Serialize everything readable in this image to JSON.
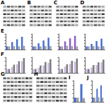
{
  "blots": [
    {
      "label": "A",
      "rows": 6,
      "lanes": 6
    },
    {
      "label": "B",
      "rows": 6,
      "lanes": 6
    },
    {
      "label": "C",
      "rows": 6,
      "lanes": 6
    },
    {
      "label": "D",
      "rows": 6,
      "lanes": 6
    },
    {
      "label": "G",
      "rows": 7,
      "lanes": 8
    },
    {
      "label": "H",
      "rows": 7,
      "lanes": 8
    }
  ],
  "chart_data": [
    {
      "type": "bar",
      "title": "E",
      "categories": [
        null,
        null,
        null,
        null
      ],
      "series": [
        {
          "color": "#4a6fd0",
          "values": [
            1,
            2.4,
            3.3,
            4.1
          ]
        },
        {
          "color": "#9a9a9a",
          "values": [
            1,
            1.1,
            1.0,
            1.2
          ]
        }
      ],
      "ylim": [
        0,
        5
      ],
      "yticks": [
        0,
        1,
        2,
        3,
        4,
        5
      ],
      "grid": false,
      "tick_labels": false
    },
    {
      "type": "bar",
      "categories": [
        null,
        null,
        null,
        null
      ],
      "series": [
        {
          "color": "#4a6fd0",
          "values": [
            1,
            2.0,
            2.9,
            3.8
          ]
        },
        {
          "color": "#9a9a9a",
          "values": [
            1,
            1.0,
            1.1,
            1.1
          ]
        }
      ],
      "ylim": [
        0,
        5
      ],
      "yticks": [
        0,
        1,
        2,
        3,
        4,
        5
      ],
      "grid": false,
      "tick_labels": false
    },
    {
      "type": "bar",
      "categories": [
        null,
        null,
        null,
        null
      ],
      "series": [
        {
          "color": "#8a5cc8",
          "values": [
            1,
            2.6,
            3.6,
            4.4
          ]
        },
        {
          "color": "#9a9a9a",
          "values": [
            1,
            1.2,
            1.1,
            1.0
          ]
        }
      ],
      "ylim": [
        0,
        5
      ],
      "yticks": [
        0,
        1,
        2,
        3,
        4,
        5
      ],
      "grid": false,
      "tick_labels": false
    },
    {
      "type": "bar",
      "categories": [
        null,
        null,
        null,
        null
      ],
      "series": [
        {
          "color": "#4a6fd0",
          "values": [
            1,
            1.8,
            2.7,
            3.5
          ]
        },
        {
          "color": "#9a9a9a",
          "values": [
            1,
            1.1,
            1.0,
            1.1
          ]
        }
      ],
      "ylim": [
        0,
        5
      ],
      "yticks": [
        0,
        1,
        2,
        3,
        4,
        5
      ],
      "grid": false,
      "tick_labels": false
    },
    {
      "type": "bar",
      "title": "F",
      "categories": [
        null,
        null,
        null,
        null
      ],
      "series": [
        {
          "color": "#c9b8e0",
          "values": [
            1,
            1.5,
            2.2,
            3.0
          ]
        },
        {
          "color": "#7a7a7a",
          "values": [
            1,
            2.1,
            3.0,
            3.8
          ]
        }
      ],
      "ylim": [
        0,
        4
      ],
      "yticks": [
        0,
        1,
        2,
        3,
        4
      ],
      "grid": false,
      "tick_labels": false
    },
    {
      "type": "bar",
      "categories": [
        null,
        null,
        null,
        null
      ],
      "series": [
        {
          "color": "#c9b8e0",
          "values": [
            1,
            1.3,
            1.9,
            2.6
          ]
        },
        {
          "color": "#7a7a7a",
          "values": [
            1,
            1.9,
            2.8,
            3.5
          ]
        }
      ],
      "ylim": [
        0,
        4
      ],
      "yticks": [
        0,
        1,
        2,
        3,
        4
      ],
      "grid": false,
      "tick_labels": false
    },
    {
      "type": "bar",
      "categories": [
        null,
        null,
        null,
        null
      ],
      "series": [
        {
          "color": "#c9b8e0",
          "values": [
            1,
            1.6,
            2.3,
            2.9
          ]
        },
        {
          "color": "#7a7a7a",
          "values": [
            1,
            2.2,
            3.1,
            3.7
          ]
        }
      ],
      "ylim": [
        0,
        4
      ],
      "yticks": [
        0,
        1,
        2,
        3,
        4
      ],
      "grid": false,
      "tick_labels": false
    },
    {
      "type": "bar",
      "categories": [
        null,
        null,
        null,
        null
      ],
      "series": [
        {
          "color": "#c9b8e0",
          "values": [
            1,
            1.4,
            2.0,
            2.7
          ]
        },
        {
          "color": "#7a7a7a",
          "values": [
            1,
            2.0,
            2.7,
            3.4
          ]
        }
      ],
      "ylim": [
        0,
        4
      ],
      "yticks": [
        0,
        1,
        2,
        3,
        4
      ],
      "grid": false,
      "tick_labels": false
    },
    {
      "type": "bar",
      "title": "I",
      "categories": [
        null,
        null
      ],
      "series": [
        {
          "color": "#4a6fd0",
          "values": [
            1,
            4.2
          ]
        },
        {
          "color": "#9a9a9a",
          "values": [
            1,
            0.9
          ]
        }
      ],
      "ylim": [
        0,
        5
      ],
      "yticks": [
        0,
        1,
        2,
        3,
        4,
        5
      ],
      "grid": false,
      "tick_labels": false
    },
    {
      "type": "bar",
      "title": "J",
      "categories": [
        null,
        null,
        null
      ],
      "series": [
        {
          "color": "#4a6fd0",
          "values": [
            1,
            3.1,
            3.9
          ]
        },
        {
          "color": "#9a9a9a",
          "values": [
            1,
            1.1,
            1.0
          ]
        }
      ],
      "ylim": [
        0,
        5
      ],
      "yticks": [
        0,
        1,
        2,
        3,
        4,
        5
      ],
      "grid": false,
      "tick_labels": false
    }
  ]
}
